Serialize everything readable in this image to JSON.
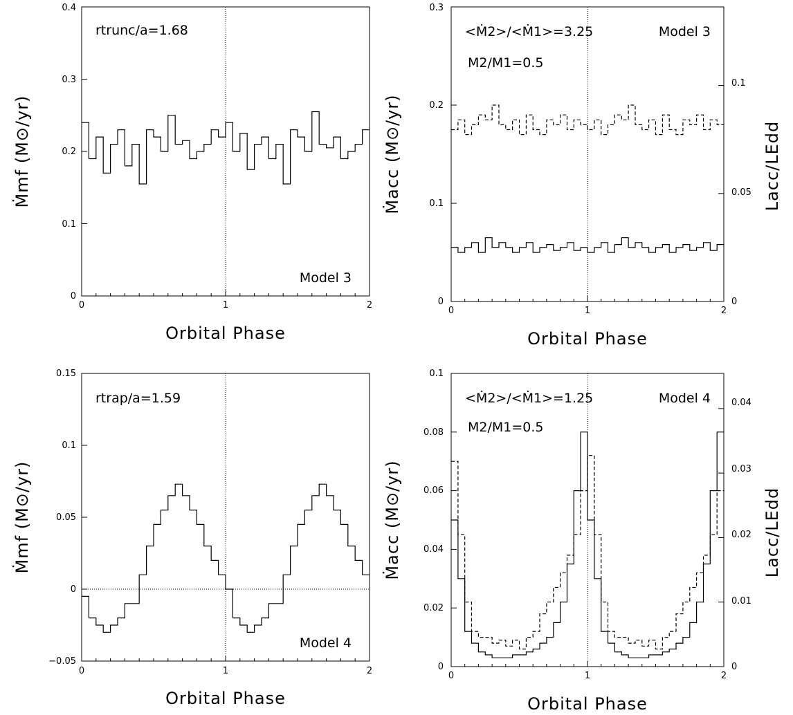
{
  "chart_data": [
    {
      "type": "line",
      "panel": "top-left",
      "step": true,
      "xlabel": "Orbital Phase",
      "ylabel": "Ṁmf (M⊙/yr)",
      "xlim": [
        0,
        2
      ],
      "ylim": [
        0,
        0.4
      ],
      "xticks": [
        "0",
        "1",
        "2"
      ],
      "yticks": [
        "0",
        "0.1",
        "0.2",
        "0.3",
        "0.4"
      ],
      "vline": 1,
      "annotations": [
        "rtrunc/a=1.68",
        "Model 3"
      ],
      "series": [
        {
          "style": "solid",
          "x": [
            0,
            0.05,
            0.1,
            0.15,
            0.2,
            0.25,
            0.3,
            0.35,
            0.4,
            0.45,
            0.5,
            0.55,
            0.6,
            0.65,
            0.7,
            0.75,
            0.8,
            0.85,
            0.9,
            0.95,
            1.0,
            1.05,
            1.1,
            1.15,
            1.2,
            1.25,
            1.3,
            1.35,
            1.4,
            1.45,
            1.5,
            1.55,
            1.6,
            1.65,
            1.7,
            1.75,
            1.8,
            1.85,
            1.9,
            1.95,
            2.0
          ],
          "y": [
            0.24,
            0.19,
            0.22,
            0.17,
            0.21,
            0.23,
            0.18,
            0.21,
            0.155,
            0.23,
            0.22,
            0.2,
            0.25,
            0.21,
            0.215,
            0.19,
            0.2,
            0.21,
            0.23,
            0.22,
            0.24,
            0.2,
            0.225,
            0.175,
            0.21,
            0.22,
            0.19,
            0.21,
            0.155,
            0.23,
            0.22,
            0.2,
            0.255,
            0.21,
            0.205,
            0.22,
            0.19,
            0.2,
            0.21,
            0.23,
            0.23
          ]
        }
      ]
    },
    {
      "type": "line",
      "panel": "top-right",
      "step": true,
      "xlabel": "Orbital Phase",
      "ylabel": "Ṁacc (M⊙/yr)",
      "ylabel_right": "Lacc/LEdd",
      "xlim": [
        0,
        2
      ],
      "ylim": [
        0,
        0.3
      ],
      "xticks": [
        "0",
        "1",
        "2"
      ],
      "yticks": [
        "0",
        "0.1",
        "0.2",
        "0.3"
      ],
      "right_ticks": [
        "0",
        "0.05",
        "0.1"
      ],
      "vline": 1,
      "annotations": [
        "<Ṁ2>/<Ṁ1>=3.25",
        "Model 3",
        "M2/M1=0.5"
      ],
      "series": [
        {
          "style": "dashed",
          "x": [
            0,
            0.05,
            0.1,
            0.15,
            0.2,
            0.25,
            0.3,
            0.35,
            0.4,
            0.45,
            0.5,
            0.55,
            0.6,
            0.65,
            0.7,
            0.75,
            0.8,
            0.85,
            0.9,
            0.95,
            1.0,
            1.05,
            1.1,
            1.15,
            1.2,
            1.25,
            1.3,
            1.35,
            1.4,
            1.45,
            1.5,
            1.55,
            1.6,
            1.65,
            1.7,
            1.75,
            1.8,
            1.85,
            1.9,
            1.95,
            2.0
          ],
          "y": [
            0.175,
            0.185,
            0.17,
            0.18,
            0.19,
            0.185,
            0.2,
            0.18,
            0.175,
            0.185,
            0.17,
            0.19,
            0.175,
            0.17,
            0.185,
            0.18,
            0.19,
            0.175,
            0.185,
            0.18,
            0.175,
            0.185,
            0.17,
            0.18,
            0.19,
            0.185,
            0.2,
            0.18,
            0.175,
            0.185,
            0.17,
            0.19,
            0.175,
            0.17,
            0.185,
            0.18,
            0.19,
            0.175,
            0.185,
            0.18,
            0.18
          ]
        },
        {
          "style": "solid",
          "x": [
            0,
            0.05,
            0.1,
            0.15,
            0.2,
            0.25,
            0.3,
            0.35,
            0.4,
            0.45,
            0.5,
            0.55,
            0.6,
            0.65,
            0.7,
            0.75,
            0.8,
            0.85,
            0.9,
            0.95,
            1.0,
            1.05,
            1.1,
            1.15,
            1.2,
            1.25,
            1.3,
            1.35,
            1.4,
            1.45,
            1.5,
            1.55,
            1.6,
            1.65,
            1.7,
            1.75,
            1.8,
            1.85,
            1.9,
            1.95,
            2.0
          ],
          "y": [
            0.055,
            0.05,
            0.055,
            0.06,
            0.05,
            0.065,
            0.055,
            0.06,
            0.055,
            0.05,
            0.055,
            0.06,
            0.05,
            0.055,
            0.058,
            0.052,
            0.055,
            0.06,
            0.052,
            0.055,
            0.05,
            0.055,
            0.06,
            0.05,
            0.058,
            0.065,
            0.055,
            0.06,
            0.055,
            0.05,
            0.055,
            0.058,
            0.05,
            0.055,
            0.058,
            0.052,
            0.055,
            0.06,
            0.052,
            0.058,
            0.055
          ]
        }
      ]
    },
    {
      "type": "line",
      "panel": "bottom-left",
      "step": true,
      "xlabel": "Orbital Phase",
      "ylabel": "Ṁmf (M⊙/yr)",
      "xlim": [
        0,
        2
      ],
      "ylim": [
        -0.05,
        0.15
      ],
      "xticks": [
        "0",
        "1",
        "2"
      ],
      "yticks": [
        "−0.05",
        "0",
        "0.05",
        "0.1",
        "0.15"
      ],
      "vline": 1,
      "hline": 0,
      "annotations": [
        "rtrap/a=1.59",
        "Model 4"
      ],
      "series": [
        {
          "style": "solid",
          "x": [
            0,
            0.05,
            0.1,
            0.15,
            0.2,
            0.25,
            0.3,
            0.35,
            0.4,
            0.45,
            0.5,
            0.55,
            0.6,
            0.65,
            0.7,
            0.75,
            0.8,
            0.85,
            0.9,
            0.95,
            1.0,
            1.05,
            1.1,
            1.15,
            1.2,
            1.25,
            1.3,
            1.35,
            1.4,
            1.45,
            1.5,
            1.55,
            1.6,
            1.65,
            1.7,
            1.75,
            1.8,
            1.85,
            1.9,
            1.95,
            2.0
          ],
          "y": [
            -0.005,
            -0.02,
            -0.025,
            -0.03,
            -0.025,
            -0.02,
            -0.01,
            -0.01,
            0.01,
            0.03,
            0.045,
            0.055,
            0.065,
            0.073,
            0.065,
            0.055,
            0.045,
            0.03,
            0.02,
            0.01,
            0.0,
            -0.02,
            -0.025,
            -0.03,
            -0.025,
            -0.02,
            -0.01,
            -0.01,
            0.01,
            0.03,
            0.045,
            0.055,
            0.065,
            0.073,
            0.065,
            0.055,
            0.045,
            0.03,
            0.02,
            0.01,
            0.005
          ]
        }
      ]
    },
    {
      "type": "line",
      "panel": "bottom-right",
      "step": true,
      "xlabel": "Orbital Phase",
      "ylabel": "Ṁacc (M⊙/yr)",
      "ylabel_right": "Lacc/LEdd",
      "xlim": [
        0,
        2
      ],
      "ylim": [
        0,
        0.1
      ],
      "xticks": [
        "0",
        "1",
        "2"
      ],
      "yticks": [
        "0",
        "0.02",
        "0.04",
        "0.06",
        "0.08",
        "0.1"
      ],
      "right_ticks": [
        "0",
        "0.01",
        "0.02",
        "0.03",
        "0.04"
      ],
      "vline": 1,
      "annotations": [
        "<Ṁ2>/<Ṁ1>=1.25",
        "Model 4",
        "M2/M1=0.5"
      ],
      "series": [
        {
          "style": "dashed",
          "x": [
            0,
            0.05,
            0.1,
            0.15,
            0.2,
            0.25,
            0.3,
            0.35,
            0.4,
            0.45,
            0.5,
            0.55,
            0.6,
            0.65,
            0.7,
            0.75,
            0.8,
            0.85,
            0.9,
            0.95,
            1.0,
            1.05,
            1.1,
            1.15,
            1.2,
            1.25,
            1.3,
            1.35,
            1.4,
            1.45,
            1.5,
            1.55,
            1.6,
            1.65,
            1.7,
            1.75,
            1.8,
            1.85,
            1.9,
            1.95,
            2.0
          ],
          "y": [
            0.07,
            0.045,
            0.022,
            0.012,
            0.01,
            0.01,
            0.008,
            0.009,
            0.007,
            0.009,
            0.006,
            0.01,
            0.012,
            0.018,
            0.022,
            0.027,
            0.032,
            0.038,
            0.045,
            0.06,
            0.072,
            0.045,
            0.022,
            0.012,
            0.01,
            0.01,
            0.008,
            0.009,
            0.007,
            0.009,
            0.006,
            0.01,
            0.012,
            0.018,
            0.022,
            0.027,
            0.032,
            0.038,
            0.045,
            0.06,
            0.06
          ]
        },
        {
          "style": "solid",
          "x": [
            0,
            0.05,
            0.1,
            0.15,
            0.2,
            0.25,
            0.3,
            0.35,
            0.4,
            0.45,
            0.5,
            0.55,
            0.6,
            0.65,
            0.7,
            0.75,
            0.8,
            0.85,
            0.9,
            0.95,
            1.0,
            1.05,
            1.1,
            1.15,
            1.2,
            1.25,
            1.3,
            1.35,
            1.4,
            1.45,
            1.5,
            1.55,
            1.6,
            1.65,
            1.7,
            1.75,
            1.8,
            1.85,
            1.9,
            1.95,
            2.0
          ],
          "y": [
            0.05,
            0.03,
            0.012,
            0.008,
            0.005,
            0.004,
            0.003,
            0.003,
            0.003,
            0.004,
            0.004,
            0.005,
            0.006,
            0.008,
            0.01,
            0.015,
            0.022,
            0.035,
            0.06,
            0.08,
            0.05,
            0.03,
            0.012,
            0.008,
            0.005,
            0.004,
            0.003,
            0.003,
            0.003,
            0.004,
            0.004,
            0.005,
            0.006,
            0.008,
            0.01,
            0.015,
            0.022,
            0.035,
            0.06,
            0.08,
            0.08
          ]
        }
      ]
    }
  ]
}
